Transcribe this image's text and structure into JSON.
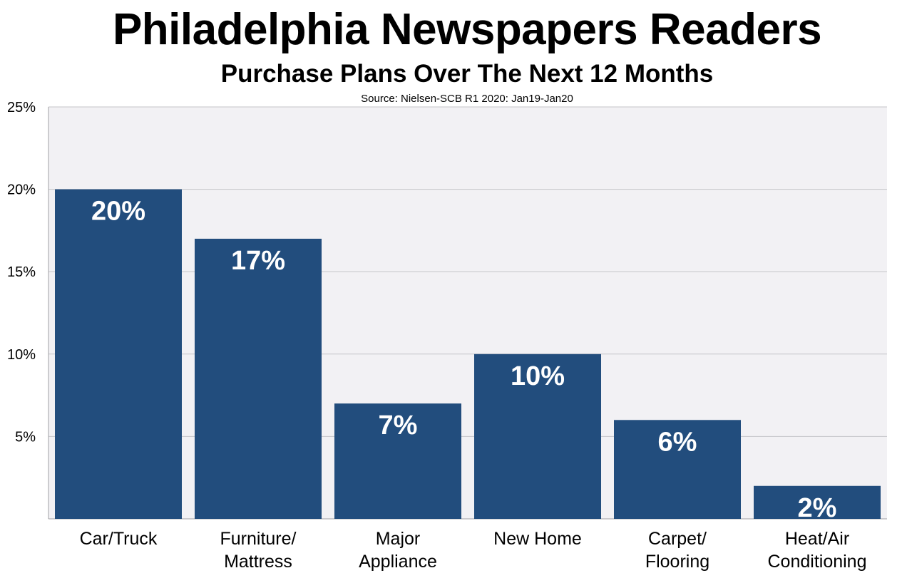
{
  "header": {
    "title": "Philadelphia Newspapers Readers",
    "subtitle": "Purchase Plans Over The Next 12 Months",
    "source": "Source: Nielsen-SCB R1 2020: Jan19-Jan20"
  },
  "colors": {
    "bar": "#224d7d",
    "plot_background": "#f2f1f4",
    "grid": "#c4c4c8",
    "bar_label": "#ffffff"
  },
  "chart_data": {
    "type": "bar",
    "title": "Philadelphia Newspapers Readers",
    "subtitle": "Purchase Plans Over The Next 12 Months",
    "categories": [
      [
        "Car/Truck"
      ],
      [
        "Furniture/",
        "Mattress"
      ],
      [
        "Major",
        "Appliance"
      ],
      [
        "New Home"
      ],
      [
        "Carpet/",
        "Flooring"
      ],
      [
        "Heat/Air",
        "Conditioning"
      ]
    ],
    "values": [
      20,
      17,
      7,
      10,
      6,
      2
    ],
    "value_labels": [
      "20%",
      "17%",
      "7%",
      "10%",
      "6%",
      "2%"
    ],
    "ylim": [
      0,
      25
    ],
    "yticks": [
      5,
      10,
      15,
      20,
      25
    ],
    "ytick_labels": [
      "5%",
      "10%",
      "15%",
      "20%",
      "25%"
    ],
    "xlabel": "",
    "ylabel": "",
    "grid": true,
    "legend": "none"
  }
}
